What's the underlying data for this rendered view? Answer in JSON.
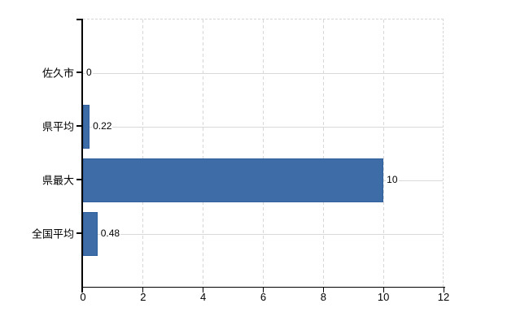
{
  "chart_data": {
    "type": "bar",
    "orientation": "horizontal",
    "title": "",
    "xlabel": "",
    "ylabel": "",
    "categories": [
      "佐久市",
      "県平均",
      "県最大",
      "全国平均"
    ],
    "values": [
      0,
      0.22,
      10,
      0.48
    ],
    "data_labels": [
      "0",
      "0.22",
      "10",
      "0.48"
    ],
    "xlim": [
      0,
      12
    ],
    "x_ticks": [
      "0",
      "2",
      "4",
      "6",
      "8",
      "10",
      "12"
    ],
    "grid": true,
    "legend": false,
    "colors": {
      "bar_fill": "#3d6ca6",
      "bar_border": "#2f5f9d",
      "h_gridline": "#d9d9d9",
      "v_gridline": "#d7d7d7",
      "plot_border": "#d5d5d5",
      "axis": "#000000",
      "text": "#000000",
      "background": "#ffffff"
    }
  }
}
